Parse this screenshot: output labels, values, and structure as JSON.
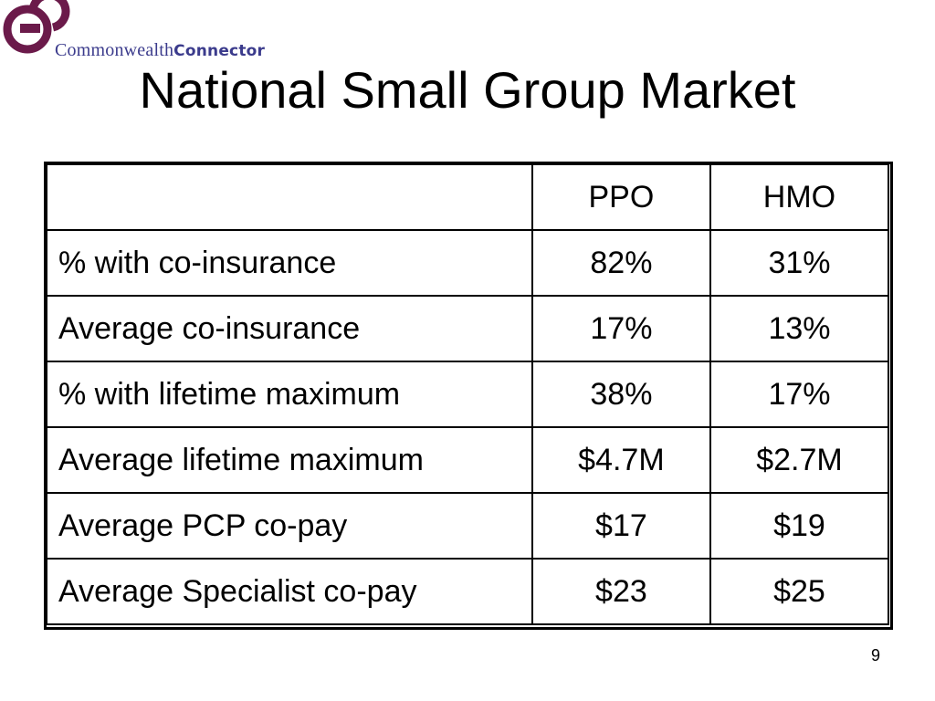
{
  "logo": {
    "brand_light": "Commonwealth",
    "brand_bold": "Connector",
    "icon": "interlocking-rings-logo-icon",
    "color": "#6b1a4a",
    "text_color": "#3b3b8c"
  },
  "slide": {
    "title": "National Small Group Market",
    "page_number": "9"
  },
  "table": {
    "headers": [
      "",
      "PPO",
      "HMO"
    ],
    "rows": [
      [
        "% with co-insurance",
        "82%",
        "31%"
      ],
      [
        "Average co-insurance",
        "17%",
        "13%"
      ],
      [
        "% with lifetime maximum",
        "38%",
        "17%"
      ],
      [
        "Average lifetime maximum",
        "$4.7M",
        "$2.7M"
      ],
      [
        "Average PCP co-pay",
        "$17",
        "$19"
      ],
      [
        "Average Specialist co-pay",
        "$23",
        "$25"
      ]
    ]
  }
}
